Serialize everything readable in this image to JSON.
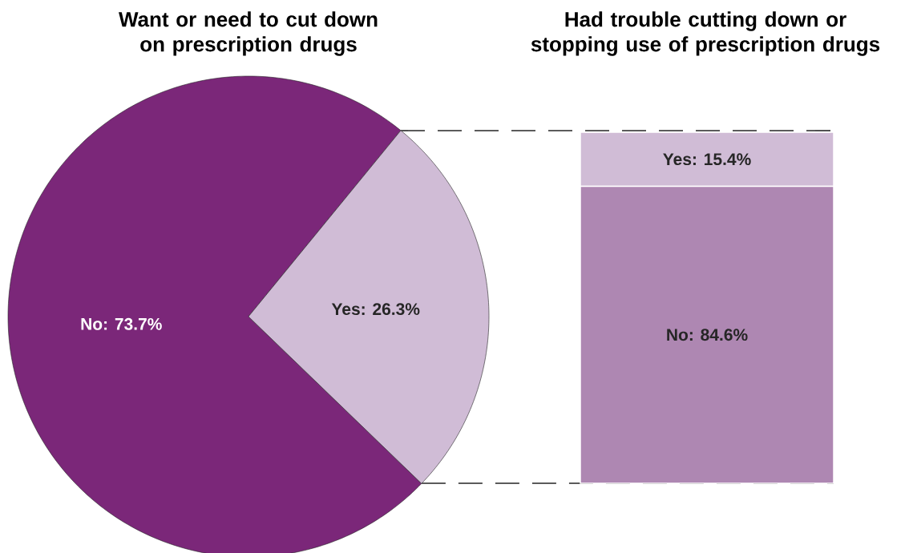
{
  "chart_data": [
    {
      "type": "pie",
      "title": "Want or need to cut down on prescription drugs",
      "values": [
        73.7,
        26.3
      ],
      "value_labels": [
        "No: 73.7%",
        "Yes: 26.3%"
      ],
      "colors": [
        "#7b2779",
        "#d0bcd6"
      ]
    },
    {
      "type": "bar",
      "title": "Had trouble cutting down or stopping use of prescription drugs",
      "stacked": true,
      "categories": [
        null
      ],
      "series": [
        {
          "color": "#ae87b2",
          "values": [
            84.6
          ],
          "value_labels": [
            "No: 84.6%"
          ]
        },
        {
          "color": "#d0bcd6",
          "values": [
            15.4
          ],
          "value_labels": [
            "Yes: 15.4%"
          ]
        }
      ]
    }
  ]
}
